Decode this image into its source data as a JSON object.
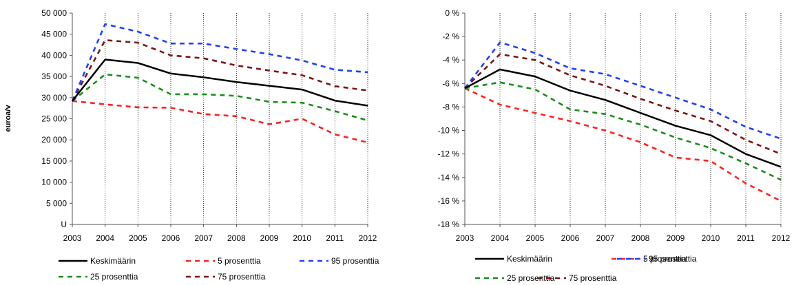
{
  "chart_data": [
    {
      "type": "line",
      "ylabel": "euroa/v",
      "x": [
        "2003",
        "2004",
        "2005",
        "2006",
        "2007",
        "2008",
        "2009",
        "2010",
        "2011",
        "2012"
      ],
      "ylim": [
        0,
        50000
      ],
      "yticks": [
        "U",
        "5 000",
        "10 000",
        "15 000",
        "20 000",
        "25 000",
        "30 000",
        "35 000",
        "40 000",
        "45 000",
        "50 000"
      ],
      "legend_rows": [
        [
          0,
          1,
          2
        ],
        [
          3,
          4
        ]
      ],
      "series": [
        {
          "name": "Keskimäärin",
          "color": "#000000",
          "style": "solid",
          "values": [
            29200,
            39000,
            38200,
            35700,
            34800,
            33700,
            32800,
            31900,
            29300,
            28100
          ]
        },
        {
          "name": "5  prosenttia",
          "color": "#ff2020",
          "style": "dashed",
          "values": [
            29200,
            28400,
            27700,
            27600,
            26100,
            25600,
            23700,
            25000,
            21300,
            19400
          ]
        },
        {
          "name": "95  prosenttia",
          "color": "#1f3fff",
          "style": "dashed",
          "values": [
            29200,
            47400,
            45600,
            42800,
            42800,
            41500,
            40300,
            38800,
            36600,
            36000
          ]
        },
        {
          "name": "25  prosenttia",
          "color": "#1a8c1a",
          "style": "dashed",
          "values": [
            29200,
            35500,
            34700,
            30800,
            30800,
            30400,
            29000,
            28800,
            26800,
            24600
          ]
        },
        {
          "name": "75  prosenttia",
          "color": "#7b1515",
          "style": "dashed",
          "values": [
            29200,
            43600,
            43000,
            40000,
            39300,
            37600,
            36400,
            35300,
            32700,
            31700
          ]
        }
      ]
    },
    {
      "type": "line",
      "ylabel": "",
      "x": [
        "2003",
        "2004",
        "2005",
        "2006",
        "2007",
        "2008",
        "2009",
        "2010",
        "2011",
        "2012"
      ],
      "ylim": [
        -18,
        0
      ],
      "yticks": [
        "-18 %",
        "-16 %",
        "-14 %",
        "-12 %",
        "-10 %",
        "-8 %",
        "-6 %",
        "-4 %",
        "-2 %",
        "0 %"
      ],
      "legend_rows": [
        [
          0,
          1,
          2
        ],
        [
          3,
          4
        ]
      ],
      "series": [
        {
          "name": "Keskimäärin",
          "color": "#000000",
          "style": "solid",
          "values": [
            -6.4,
            -4.8,
            -5.4,
            -6.6,
            -7.4,
            -8.5,
            -9.6,
            -10.4,
            -12.0,
            -13.1
          ]
        },
        {
          "name": "5  prosenttia",
          "color": "#ff2020",
          "style": "dashed",
          "values": [
            -6.4,
            -7.8,
            -8.5,
            -9.2,
            -10.0,
            -11.0,
            -12.3,
            -12.6,
            -14.5,
            -16.0
          ]
        },
        {
          "name": "95  prosenttia",
          "color": "#1f3fff",
          "style": "dashed",
          "values": [
            -6.4,
            -2.5,
            -3.4,
            -4.7,
            -5.2,
            -6.2,
            -7.2,
            -8.2,
            -9.7,
            -10.7
          ]
        },
        {
          "name": "25  prosenttia",
          "color": "#1a8c1a",
          "style": "dashed",
          "values": [
            -6.4,
            -5.9,
            -6.5,
            -8.2,
            -8.6,
            -9.5,
            -10.6,
            -11.5,
            -12.8,
            -14.2
          ]
        },
        {
          "name": "75  prosenttia",
          "color": "#7b1515",
          "style": "dashed",
          "values": [
            -6.4,
            -3.5,
            -4.0,
            -5.3,
            -6.2,
            -7.3,
            -8.3,
            -9.2,
            -10.8,
            -12.0
          ]
        }
      ]
    }
  ]
}
